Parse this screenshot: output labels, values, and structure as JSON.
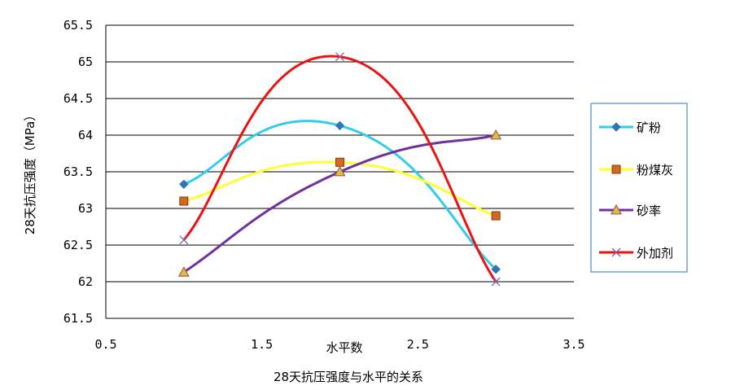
{
  "chart_data": {
    "type": "scatter",
    "title": "",
    "caption": "28天抗压强度与水平的关系",
    "xlabel": "水平数",
    "ylabel": "28天抗压强度（MPa）",
    "xlim": [
      0.5,
      3.5
    ],
    "ylim": [
      61.5,
      65.5
    ],
    "x_ticks": [
      "0.5",
      "1.5",
      "2.5",
      "3.5"
    ],
    "y_ticks": [
      "61.5",
      "62",
      "62.5",
      "63",
      "63.5",
      "64",
      "64.5",
      "65",
      "65.5"
    ],
    "grid": "horizontal",
    "legend_position": "right",
    "smooth_lines": true,
    "series": [
      {
        "name": "矿粉",
        "color": "#33CCEE",
        "marker": "diamond",
        "x": [
          1,
          2,
          3
        ],
        "y": [
          63.33,
          64.13,
          62.17
        ]
      },
      {
        "name": "粉煤灰",
        "color": "#FFFF33",
        "marker": "square",
        "x": [
          1,
          2,
          3
        ],
        "y": [
          63.1,
          63.63,
          62.9
        ]
      },
      {
        "name": "砂率",
        "color": "#7030A0",
        "marker": "triangle",
        "x": [
          1,
          2,
          3
        ],
        "y": [
          62.13,
          63.5,
          64.0
        ]
      },
      {
        "name": "外加剂",
        "color": "#EE1111",
        "marker": "x",
        "x": [
          1,
          2,
          3
        ],
        "y": [
          62.57,
          65.07,
          62.0
        ]
      }
    ]
  }
}
